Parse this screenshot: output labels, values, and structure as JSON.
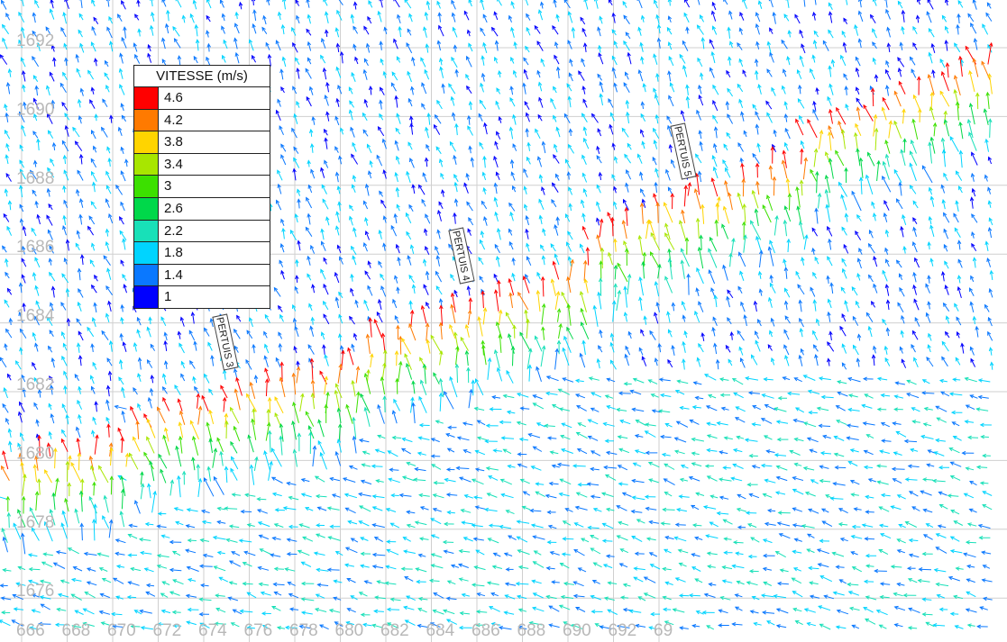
{
  "legend": {
    "title": "VITESSE (m/s)",
    "entries": [
      {
        "value": "4.6",
        "color": "#ff0000"
      },
      {
        "value": "4.2",
        "color": "#ff7a00"
      },
      {
        "value": "3.8",
        "color": "#ffd400"
      },
      {
        "value": "3.4",
        "color": "#a8e600"
      },
      {
        "value": "3",
        "color": "#3ce000"
      },
      {
        "value": "2.6",
        "color": "#00d84a"
      },
      {
        "value": "2.2",
        "color": "#18e0b8"
      },
      {
        "value": "1.8",
        "color": "#00d4ff"
      },
      {
        "value": "1.4",
        "color": "#0a78ff"
      },
      {
        "value": "1",
        "color": "#0000ff"
      }
    ]
  },
  "x_axis": {
    "ticks": [
      "666",
      "668",
      "670",
      "672",
      "674",
      "676",
      "678",
      "680",
      "682",
      "684",
      "686",
      "688",
      "690",
      "692",
      "69"
    ]
  },
  "y_axis": {
    "ticks": [
      "1692",
      "1690",
      "1688",
      "1686",
      "1684",
      "1682",
      "1680",
      "1678",
      "1676"
    ]
  },
  "labels": {
    "pertuis_3": "PERTUIS 3",
    "pertuis_4": "PERTUIS 4",
    "pertuis_5": "PERTUIS 5"
  },
  "colors": {
    "grid": "#cfcfcf",
    "axis_text": "#b8b8b8"
  }
}
